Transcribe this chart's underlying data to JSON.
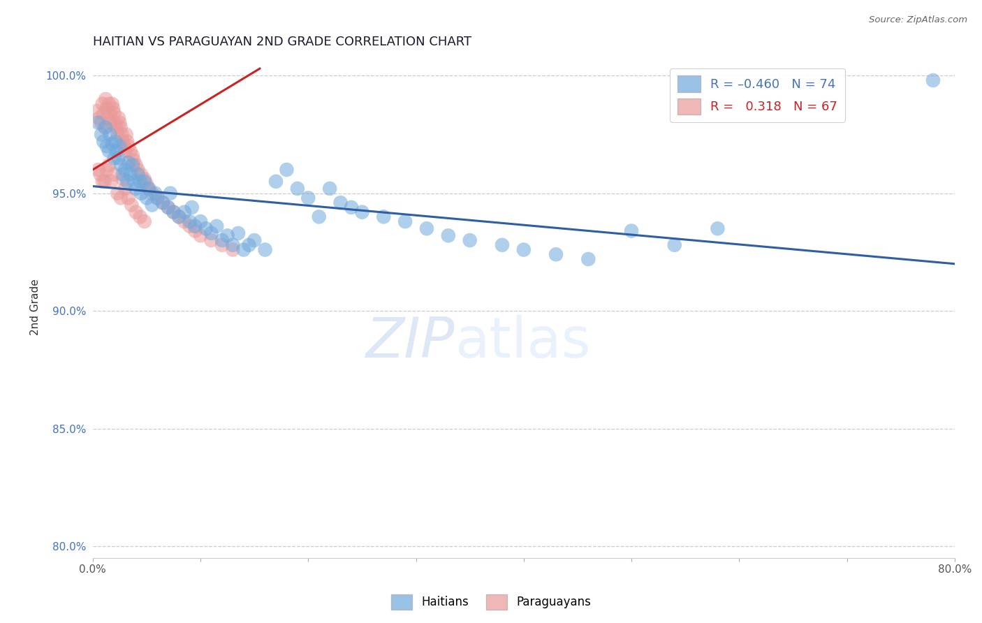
{
  "title": "HAITIAN VS PARAGUAYAN 2ND GRADE CORRELATION CHART",
  "source_text": "Source: ZipAtlas.com",
  "xlabel": "",
  "ylabel": "2nd Grade",
  "xlim": [
    0.0,
    0.8
  ],
  "ylim": [
    0.795,
    1.008
  ],
  "xticks": [
    0.0,
    0.1,
    0.2,
    0.3,
    0.4,
    0.5,
    0.6,
    0.7,
    0.8
  ],
  "xticklabels": [
    "0.0%",
    "",
    "",
    "",
    "",
    "",
    "",
    "",
    "80.0%"
  ],
  "yticks": [
    0.8,
    0.85,
    0.9,
    0.95,
    1.0
  ],
  "yticklabels": [
    "80.0%",
    "85.0%",
    "90.0%",
    "95.0%",
    "100.0%"
  ],
  "blue_color": "#6fa8dc",
  "pink_color": "#ea9999",
  "blue_line_color": "#2e5fa3",
  "pink_line_color": "#cc2222",
  "watermark_zip": "ZIP",
  "watermark_atlas": "atlas",
  "blue_trendline_x": [
    0.0,
    0.8
  ],
  "blue_trendline_y": [
    0.953,
    0.92
  ],
  "pink_trendline_x": [
    0.0,
    0.155
  ],
  "pink_trendline_y": [
    0.96,
    1.003
  ],
  "blue_scatter_x": [
    0.005,
    0.008,
    0.01,
    0.012,
    0.013,
    0.015,
    0.016,
    0.018,
    0.02,
    0.021,
    0.022,
    0.024,
    0.025,
    0.026,
    0.028,
    0.03,
    0.032,
    0.033,
    0.035,
    0.037,
    0.038,
    0.04,
    0.042,
    0.044,
    0.045,
    0.048,
    0.05,
    0.052,
    0.055,
    0.058,
    0.06,
    0.065,
    0.07,
    0.072,
    0.075,
    0.08,
    0.085,
    0.09,
    0.092,
    0.095,
    0.1,
    0.105,
    0.11,
    0.115,
    0.12,
    0.125,
    0.13,
    0.135,
    0.14,
    0.145,
    0.15,
    0.16,
    0.17,
    0.18,
    0.19,
    0.2,
    0.21,
    0.22,
    0.23,
    0.24,
    0.25,
    0.27,
    0.29,
    0.31,
    0.33,
    0.35,
    0.38,
    0.4,
    0.43,
    0.46,
    0.5,
    0.54,
    0.58,
    0.78
  ],
  "blue_scatter_y": [
    0.98,
    0.975,
    0.972,
    0.978,
    0.97,
    0.968,
    0.975,
    0.971,
    0.965,
    0.972,
    0.968,
    0.965,
    0.97,
    0.962,
    0.958,
    0.96,
    0.955,
    0.963,
    0.958,
    0.962,
    0.955,
    0.952,
    0.958,
    0.955,
    0.95,
    0.955,
    0.948,
    0.952,
    0.945,
    0.95,
    0.948,
    0.946,
    0.944,
    0.95,
    0.942,
    0.94,
    0.942,
    0.938,
    0.944,
    0.936,
    0.938,
    0.935,
    0.933,
    0.936,
    0.93,
    0.932,
    0.928,
    0.933,
    0.926,
    0.928,
    0.93,
    0.926,
    0.955,
    0.96,
    0.952,
    0.948,
    0.94,
    0.952,
    0.946,
    0.944,
    0.942,
    0.94,
    0.938,
    0.935,
    0.932,
    0.93,
    0.928,
    0.926,
    0.924,
    0.922,
    0.934,
    0.928,
    0.935,
    0.998
  ],
  "pink_scatter_x": [
    0.004,
    0.006,
    0.008,
    0.009,
    0.01,
    0.011,
    0.012,
    0.013,
    0.014,
    0.015,
    0.016,
    0.017,
    0.018,
    0.019,
    0.02,
    0.021,
    0.022,
    0.023,
    0.024,
    0.025,
    0.026,
    0.027,
    0.028,
    0.029,
    0.03,
    0.031,
    0.032,
    0.033,
    0.035,
    0.037,
    0.038,
    0.04,
    0.042,
    0.045,
    0.048,
    0.05,
    0.052,
    0.055,
    0.06,
    0.065,
    0.07,
    0.075,
    0.08,
    0.085,
    0.09,
    0.095,
    0.1,
    0.11,
    0.12,
    0.13,
    0.005,
    0.007,
    0.009,
    0.011,
    0.013,
    0.015,
    0.017,
    0.02,
    0.023,
    0.026,
    0.028,
    0.03,
    0.033,
    0.036,
    0.04,
    0.044,
    0.048
  ],
  "pink_scatter_y": [
    0.985,
    0.982,
    0.98,
    0.988,
    0.984,
    0.978,
    0.99,
    0.986,
    0.982,
    0.988,
    0.984,
    0.98,
    0.988,
    0.986,
    0.984,
    0.98,
    0.978,
    0.975,
    0.982,
    0.98,
    0.978,
    0.975,
    0.972,
    0.97,
    0.968,
    0.975,
    0.972,
    0.97,
    0.968,
    0.966,
    0.964,
    0.962,
    0.96,
    0.958,
    0.956,
    0.954,
    0.952,
    0.95,
    0.948,
    0.946,
    0.944,
    0.942,
    0.94,
    0.938,
    0.936,
    0.934,
    0.932,
    0.93,
    0.928,
    0.926,
    0.96,
    0.958,
    0.955,
    0.955,
    0.96,
    0.962,
    0.955,
    0.958,
    0.95,
    0.948,
    0.956,
    0.952,
    0.948,
    0.945,
    0.942,
    0.94,
    0.938
  ]
}
